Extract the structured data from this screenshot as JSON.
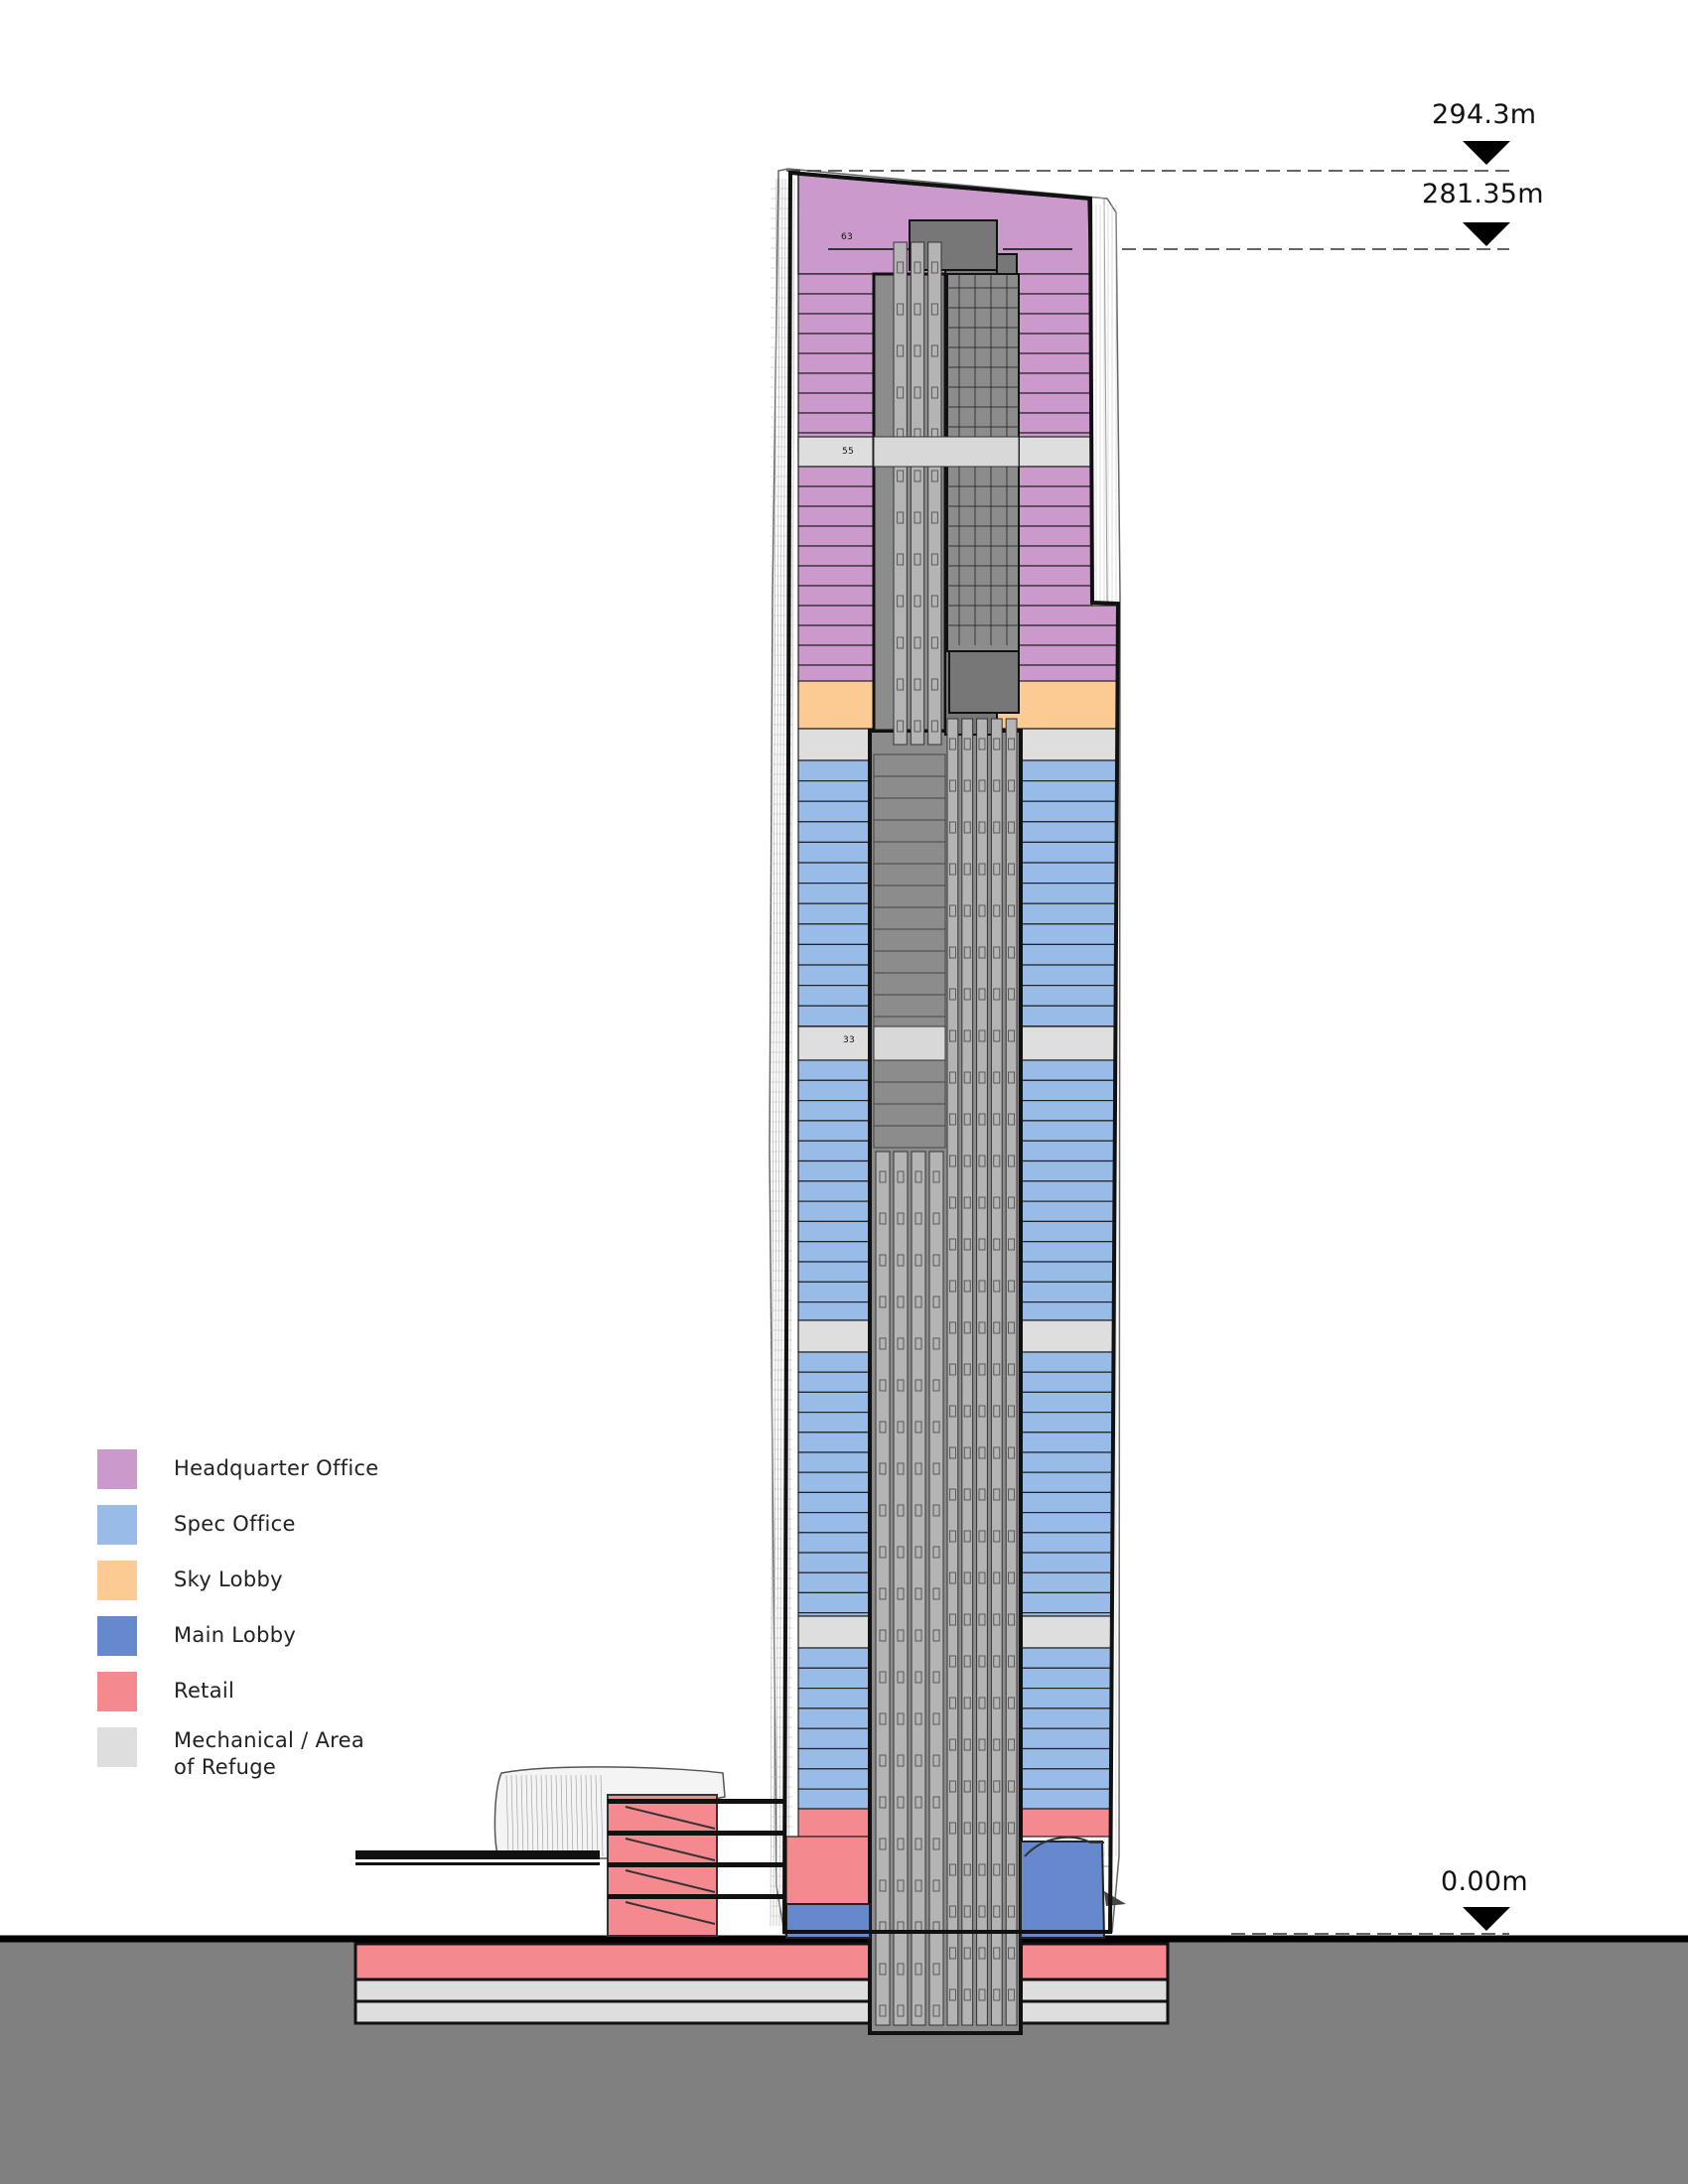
{
  "elevations": [
    {
      "label": "294.3m"
    },
    {
      "label": "281.35m"
    },
    {
      "label": "0.00m"
    }
  ],
  "legend": [
    {
      "label": "Headquarter Office",
      "color": "#cc99cc"
    },
    {
      "label": "Spec Office",
      "color": "#99bbe8"
    },
    {
      "label": "Sky Lobby",
      "color": "#fccb94"
    },
    {
      "label": "Main Lobby",
      "color": "#6688cc"
    },
    {
      "label": "Retail",
      "color": "#f4898f"
    },
    {
      "label": "Mechanical / Area\nof Refuge",
      "color": "#dedede"
    }
  ],
  "floor_tags": [
    "63",
    "55",
    "33"
  ],
  "colors": {
    "ground": "#808080",
    "core": "#8c8c8c",
    "core_dark": "#777777",
    "shaft": "#b4b4b4",
    "outline": "#111111"
  }
}
